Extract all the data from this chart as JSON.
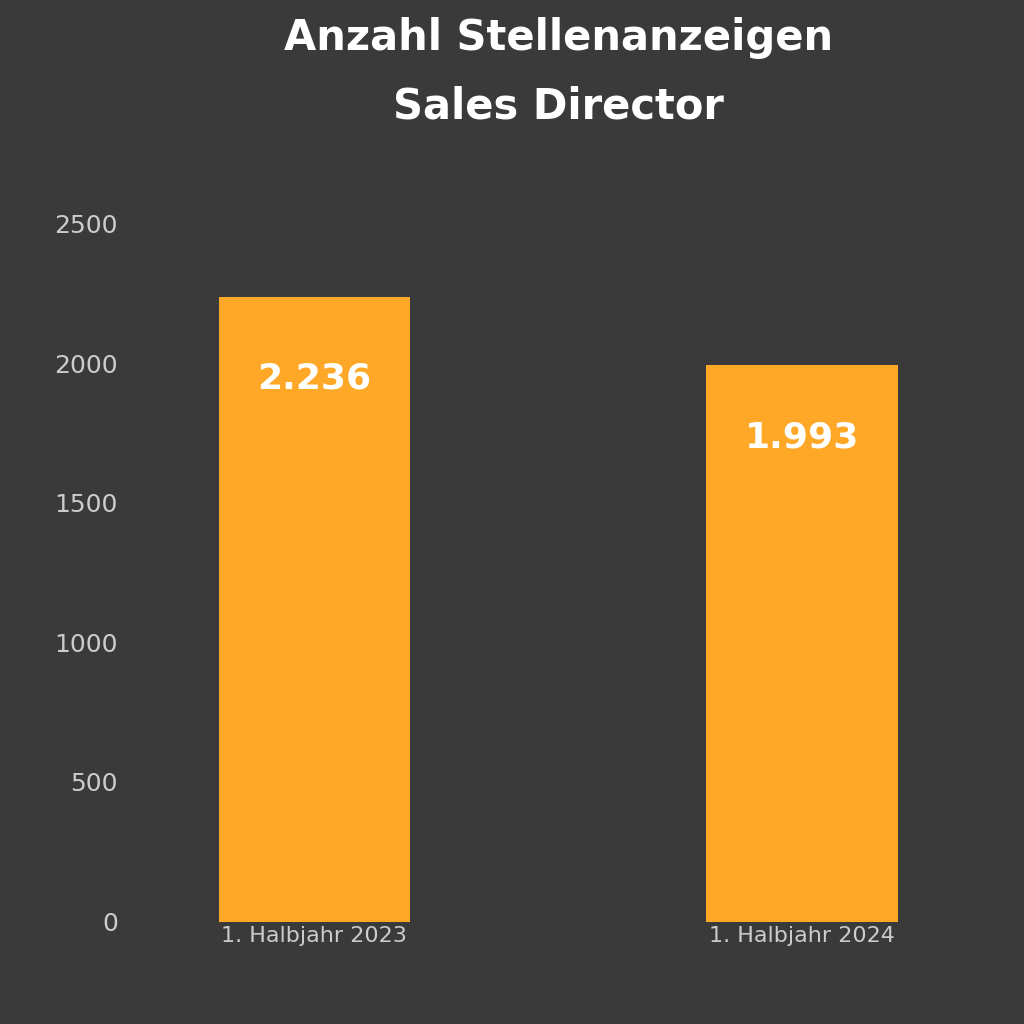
{
  "title": "Anzahl Stellenanzeigen\nSales Director",
  "categories": [
    "1. Halbjahr 2023",
    "1. Halbjahr 2024"
  ],
  "values": [
    2236,
    1993
  ],
  "labels": [
    "2.236",
    "1.993"
  ],
  "bar_color": "#FFA726",
  "background_color": "#3a3a3a",
  "text_color": "#ffffff",
  "tick_color": "#cccccc",
  "title_fontsize": 30,
  "label_fontsize": 26,
  "tick_fontsize": 18,
  "xtick_fontsize": 16,
  "ylim": [
    0,
    2750
  ],
  "yticks": [
    0,
    500,
    1000,
    1500,
    2000,
    2500
  ],
  "bar_width": 0.22,
  "x_positions": [
    0.22,
    0.78
  ]
}
